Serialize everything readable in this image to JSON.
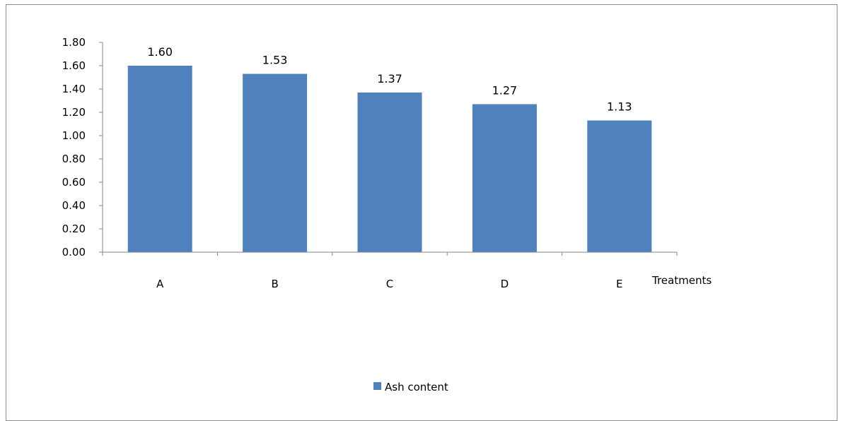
{
  "chart_data": {
    "type": "bar",
    "categories": [
      "A",
      "B",
      "C",
      "D",
      "E"
    ],
    "series": [
      {
        "name": "Ash content",
        "values": [
          1.6,
          1.53,
          1.37,
          1.27,
          1.13
        ],
        "labels": [
          "1.60",
          "1.53",
          "1.37",
          "1.27",
          "1.13"
        ],
        "color": "#4f81bd"
      }
    ],
    "title": "",
    "xlabel": "Treatments",
    "ylabel": "",
    "ylim": [
      0,
      1.8
    ],
    "yticks": [
      "0.00",
      "0.20",
      "0.40",
      "0.60",
      "0.80",
      "1.00",
      "1.20",
      "1.40",
      "1.60",
      "1.80"
    ],
    "grid": false,
    "legend_position": "bottom"
  }
}
